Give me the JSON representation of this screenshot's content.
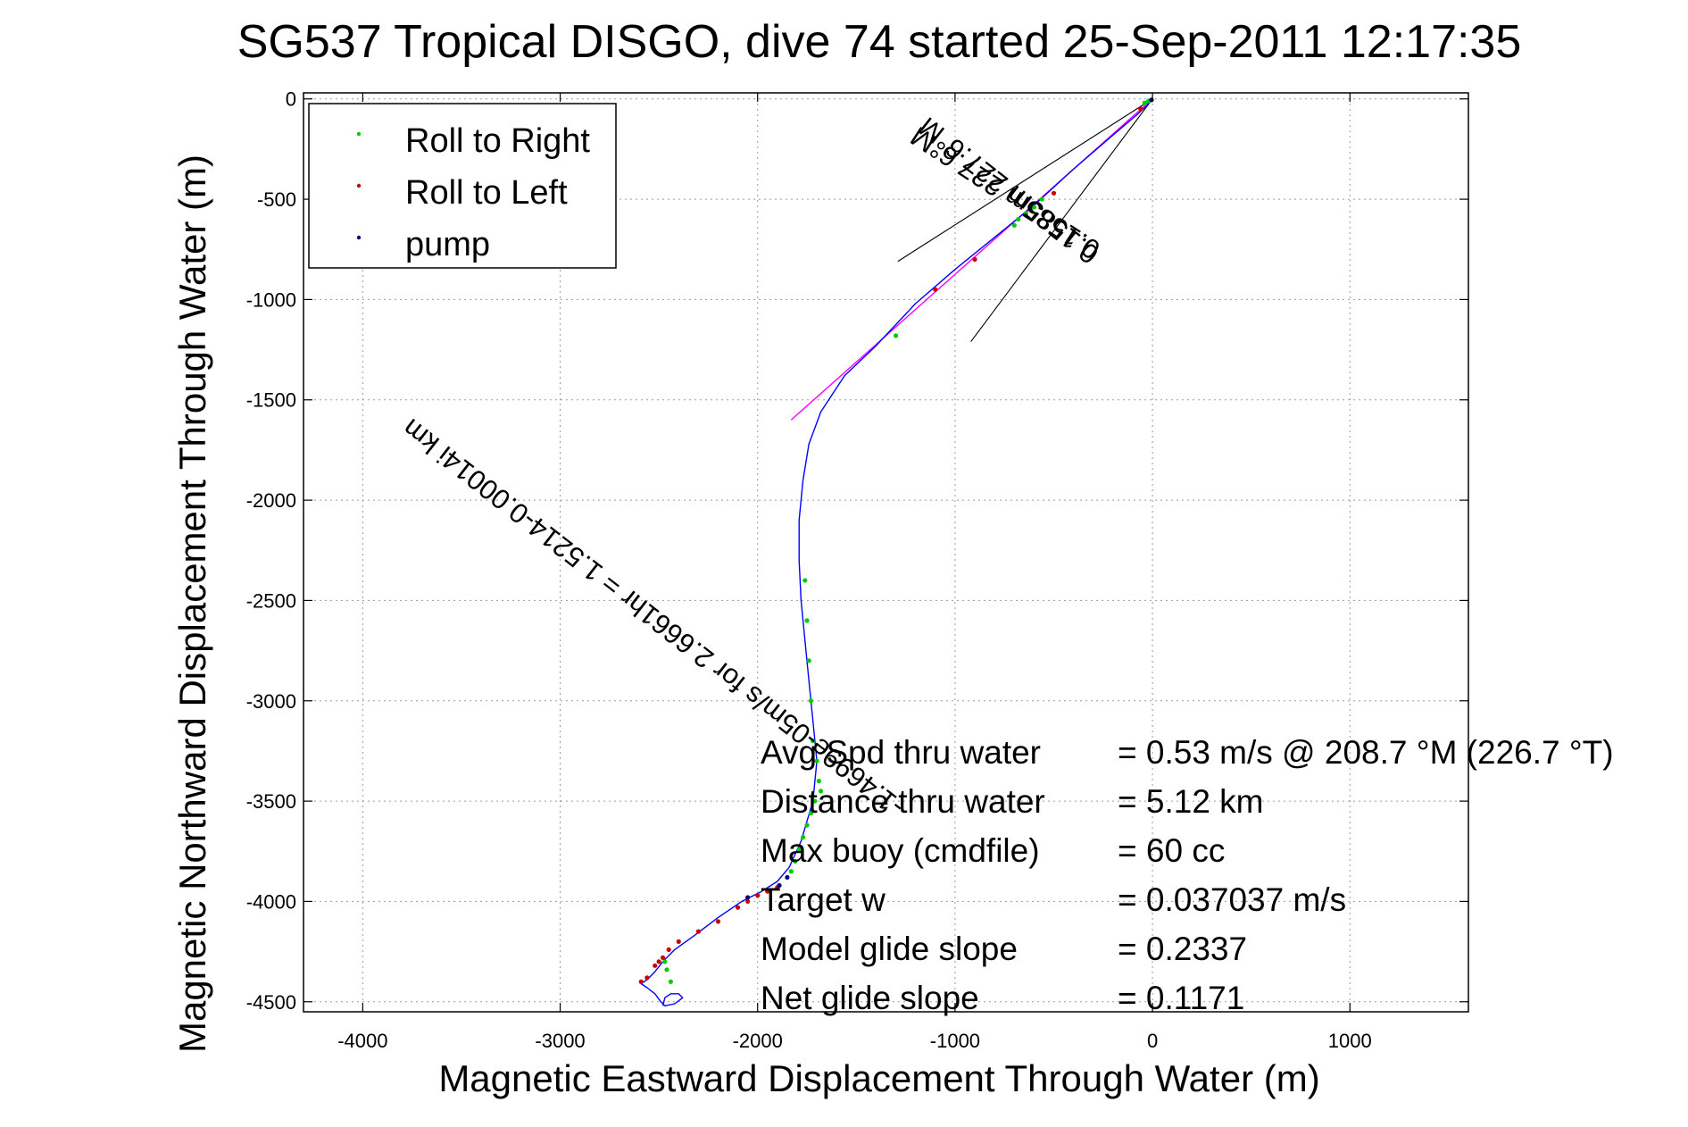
{
  "chart_data": {
    "type": "line",
    "title": "SG537 Tropical DISGO, dive 74 started 25-Sep-2011 12:17:35",
    "xlabel": "Magnetic Eastward Displacement Through Water (m)",
    "ylabel": "Magnetic Northward Displacement Through Water (m)",
    "xlim": [
      -4300,
      1600
    ],
    "ylim": [
      -4550,
      30
    ],
    "xticks": [
      -4000,
      -3000,
      -2000,
      -1000,
      0,
      1000
    ],
    "yticks": [
      0,
      -500,
      -1000,
      -1500,
      -2000,
      -2500,
      -3000,
      -3500,
      -4000,
      -4500
    ],
    "grid": true,
    "legend_position": "top-left",
    "legend": [
      {
        "label": "Roll to Right",
        "color": "#00cc00"
      },
      {
        "label": "Roll to Left",
        "color": "#cc0000"
      },
      {
        "label": "pump",
        "color": "#000080"
      }
    ],
    "colors": {
      "track": "#0000ff",
      "heading_line": "#ff00ff",
      "cone": "#000000"
    },
    "track": {
      "x": [
        0,
        -25,
        -80,
        -200,
        -400,
        -600,
        -800,
        -1000,
        -1200,
        -1400,
        -1560,
        -1680,
        -1740,
        -1770,
        -1790,
        -1790,
        -1780,
        -1760,
        -1740,
        -1720,
        -1700,
        -1720,
        -1780,
        -1840,
        -1900,
        -1980,
        -2080,
        -2200,
        -2320,
        -2420,
        -2480,
        -2520,
        -2560,
        -2590,
        -2560,
        -2520,
        -2490,
        -2470,
        -2420,
        -2380,
        -2400,
        -2440,
        -2470,
        -2480
      ],
      "y": [
        0,
        -30,
        -80,
        -180,
        -350,
        -530,
        -690,
        -850,
        -1020,
        -1230,
        -1380,
        -1560,
        -1720,
        -1900,
        -2100,
        -2300,
        -2500,
        -2700,
        -2900,
        -3100,
        -3300,
        -3500,
        -3700,
        -3830,
        -3900,
        -3950,
        -4000,
        -4080,
        -4170,
        -4240,
        -4300,
        -4350,
        -4390,
        -4410,
        -4430,
        -4460,
        -4500,
        -4520,
        -4510,
        -4480,
        -4460,
        -4460,
        -4480,
        -4520
      ]
    },
    "roll_right_points": {
      "x": [
        -20,
        -40,
        -560,
        -600,
        -640,
        -680,
        -700,
        -1300,
        -1760,
        -1750,
        -1740,
        -1730,
        -1720,
        -1700,
        -1690,
        -1680,
        -1710,
        -1730,
        -1750,
        -1770,
        -1790,
        -1810,
        -1830,
        -2470,
        -2460,
        -2440
      ],
      "y": [
        -10,
        -20,
        -500,
        -540,
        -570,
        -600,
        -630,
        -1180,
        -2400,
        -2600,
        -2800,
        -3000,
        -3200,
        -3300,
        -3400,
        -3450,
        -3500,
        -3560,
        -3620,
        -3680,
        -3740,
        -3800,
        -3850,
        -4300,
        -4340,
        -4400
      ]
    },
    "roll_left_points": {
      "x": [
        -60,
        -500,
        -900,
        -1100,
        -1900,
        -1950,
        -2000,
        -2050,
        -2100,
        -2200,
        -2300,
        -2400,
        -2450,
        -2480,
        -2500,
        -2520,
        -2560,
        -2590
      ],
      "y": [
        -50,
        -470,
        -800,
        -950,
        -3930,
        -3950,
        -3970,
        -4000,
        -4030,
        -4100,
        -4150,
        -4200,
        -4240,
        -4280,
        -4300,
        -4320,
        -4380,
        -4400
      ]
    },
    "pump_points": {
      "x": [
        -5,
        -1850,
        -1890,
        -2050
      ],
      "y": [
        -5,
        -3880,
        -3920,
        -3980
      ]
    },
    "heading_line": {
      "x": [
        0,
        -1830
      ],
      "y": [
        0,
        -1600
      ]
    },
    "cone_lines": [
      {
        "x": [
          0,
          -1290
        ],
        "y": [
          0,
          -810
        ]
      },
      {
        "x": [
          0,
          -920
        ],
        "y": [
          0,
          -1210
        ]
      }
    ],
    "annotations": [
      {
        "text": "0.1585m 227.6°M",
        "x": -700,
        "y": -420,
        "angle_deg": 218
      },
      {
        "text": "-1.4699e-05m/s for 2.6661hr = 1.5214-0.00014i km",
        "x": -2500,
        "y": -2550,
        "angle_deg": 218
      },
      {
        "text": "0.1585m 227.6°M",
        "x": -720,
        "y": -430,
        "angle_deg": 213
      }
    ],
    "stats": [
      {
        "label": "Avg Spd thru water",
        "value": "=  0.53 m/s @ 208.7 °M (226.7 °T)"
      },
      {
        "label": "Distance thru water",
        "value": "=  5.12 km"
      },
      {
        "label": "Max buoy (cmdfile)",
        "value": "= 60 cc"
      },
      {
        "label": "Target w",
        "value": "= 0.037037 m/s"
      },
      {
        "label": "Model glide slope",
        "value": "= 0.2337"
      },
      {
        "label": "Net glide slope",
        "value": "= 0.1171"
      }
    ]
  }
}
